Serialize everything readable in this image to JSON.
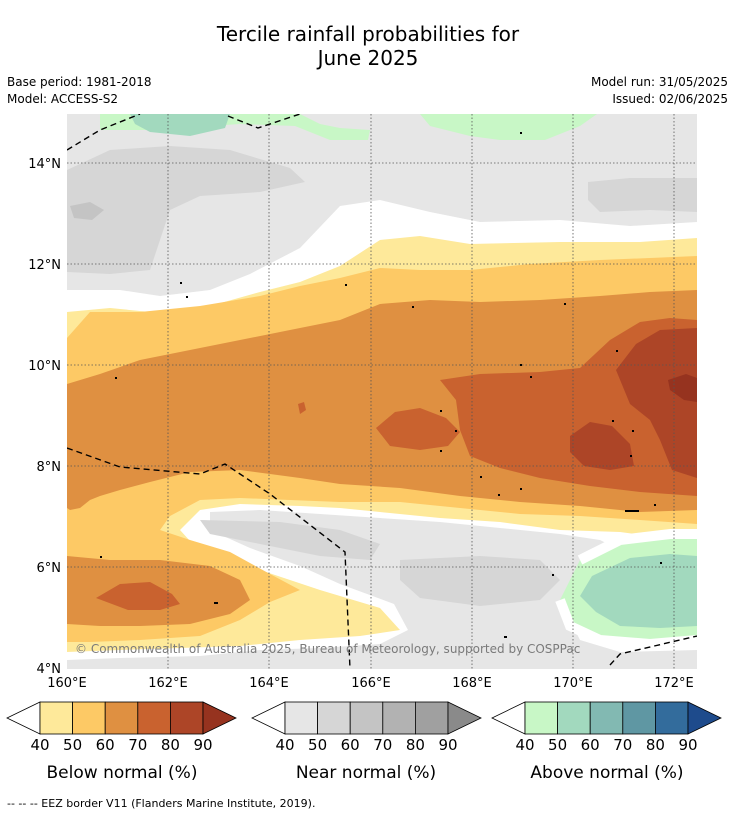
{
  "header": {
    "title_line1": "Tercile rainfall probabilities for",
    "title_line2": "June 2025",
    "base_period": "Base period: 1981-2018",
    "model": "Model: ACCESS-S2",
    "model_run": "Model run: 31/05/2025",
    "issued": "Issued: 02/06/2025"
  },
  "map": {
    "lat_labels": [
      "14°N",
      "12°N",
      "10°N",
      "8°N",
      "6°N",
      "4°N"
    ],
    "lon_labels": [
      "160°E",
      "162°E",
      "164°E",
      "166°E",
      "168°E",
      "170°E",
      "172°E"
    ],
    "copyright": "© Commonwealth of Australia 2025, Bureau of Meteorology, supported by COSPPac"
  },
  "legend": {
    "ticks": [
      "40",
      "50",
      "60",
      "70",
      "80",
      "90"
    ],
    "below": {
      "title": "Below normal (%)",
      "colors": [
        "#fee99a",
        "#fdc965",
        "#df9041",
        "#c9622f",
        "#ad4527",
        "#96331f"
      ]
    },
    "near": {
      "title": "Near normal (%)",
      "colors": [
        "#e6e6e6",
        "#d6d6d6",
        "#c4c4c4",
        "#b2b2b2",
        "#a0a0a0",
        "#8a8a8a"
      ]
    },
    "above": {
      "title": "Above normal (%)",
      "colors": [
        "#c8f7c6",
        "#a2d9be",
        "#82b9b2",
        "#5f97a3",
        "#336c9c",
        "#1e4b8c"
      ]
    }
  },
  "footnote": "--  --  -- EEZ border V11 (Flanders Marine Institute, 2019)."
}
